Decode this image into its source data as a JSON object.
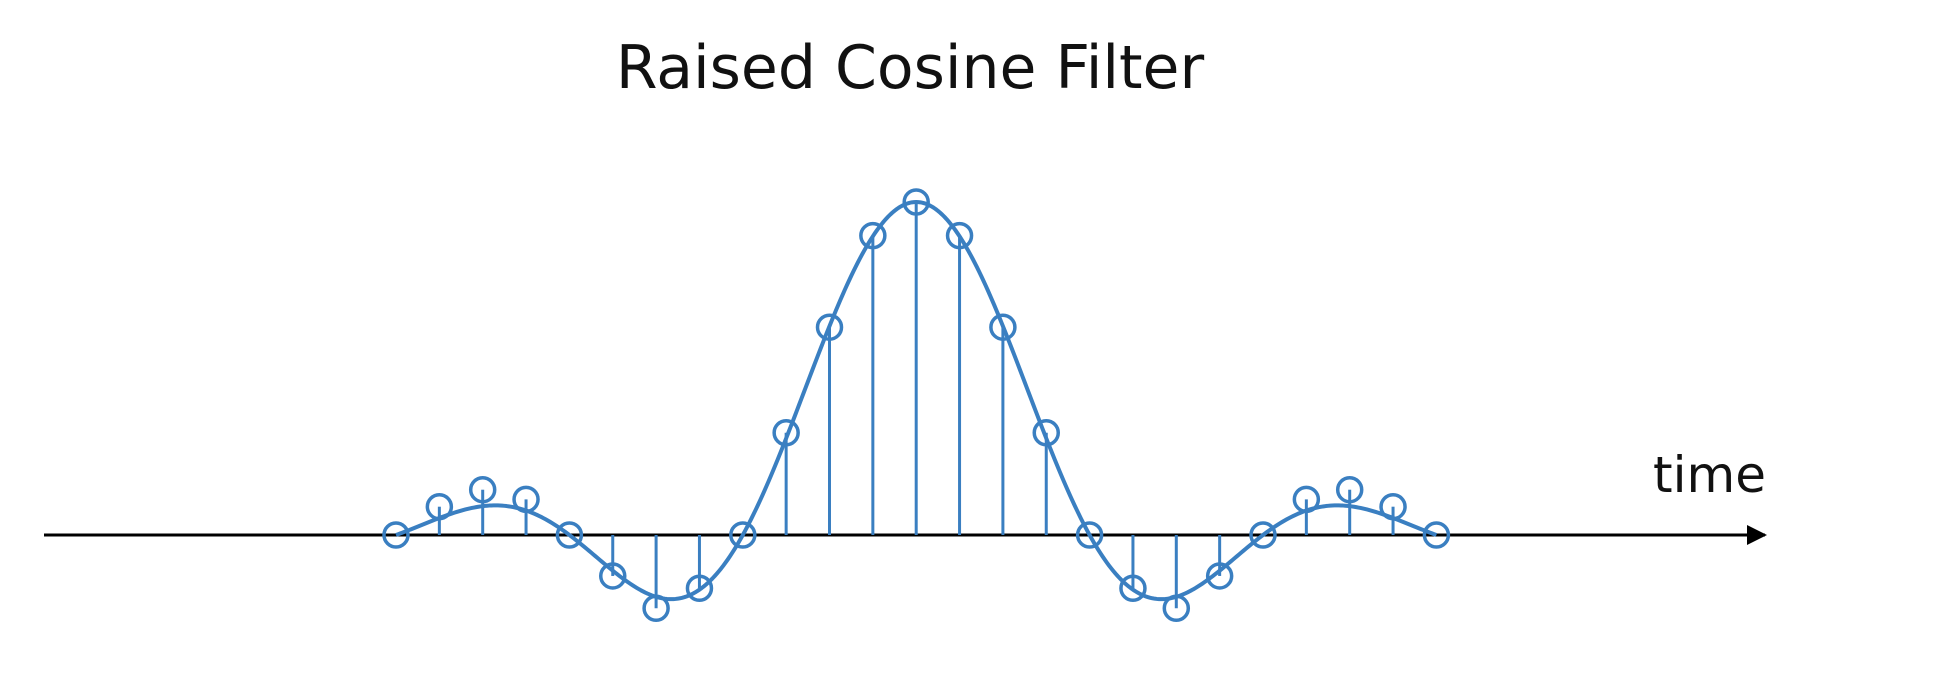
{
  "chart_data": {
    "type": "line",
    "title": "Raised Cosine Filter",
    "xlabel": "time",
    "ylabel": "",
    "grid": false,
    "legend": "none",
    "xlim": [
      -12,
      12
    ],
    "ylim": [
      -0.25,
      1.05
    ],
    "colors": {
      "series": "#3a7fc1",
      "axis": "#000000",
      "text": "#111111"
    },
    "curve": {
      "formula": "sinc(t/4) * cos(pi*beta*t/4) / (1 - (beta*t/2)^2)",
      "beta": 0.25,
      "x_range": [
        -12,
        12
      ]
    },
    "stem_samples": {
      "x": [
        -12,
        -11,
        -10,
        -9,
        -8,
        -7,
        -6,
        -5,
        -4,
        -3,
        -2,
        -1,
        0,
        1,
        2,
        3,
        4,
        5,
        6,
        7,
        8,
        9,
        10,
        11,
        12
      ],
      "y": [
        0.0,
        0.085,
        0.136,
        0.107,
        0.0,
        -0.123,
        -0.22,
        -0.16,
        0.0,
        0.307,
        0.624,
        0.899,
        1.0,
        0.899,
        0.624,
        0.307,
        0.0,
        -0.16,
        -0.22,
        -0.123,
        0.0,
        0.107,
        0.136,
        0.085,
        0.0
      ]
    }
  }
}
